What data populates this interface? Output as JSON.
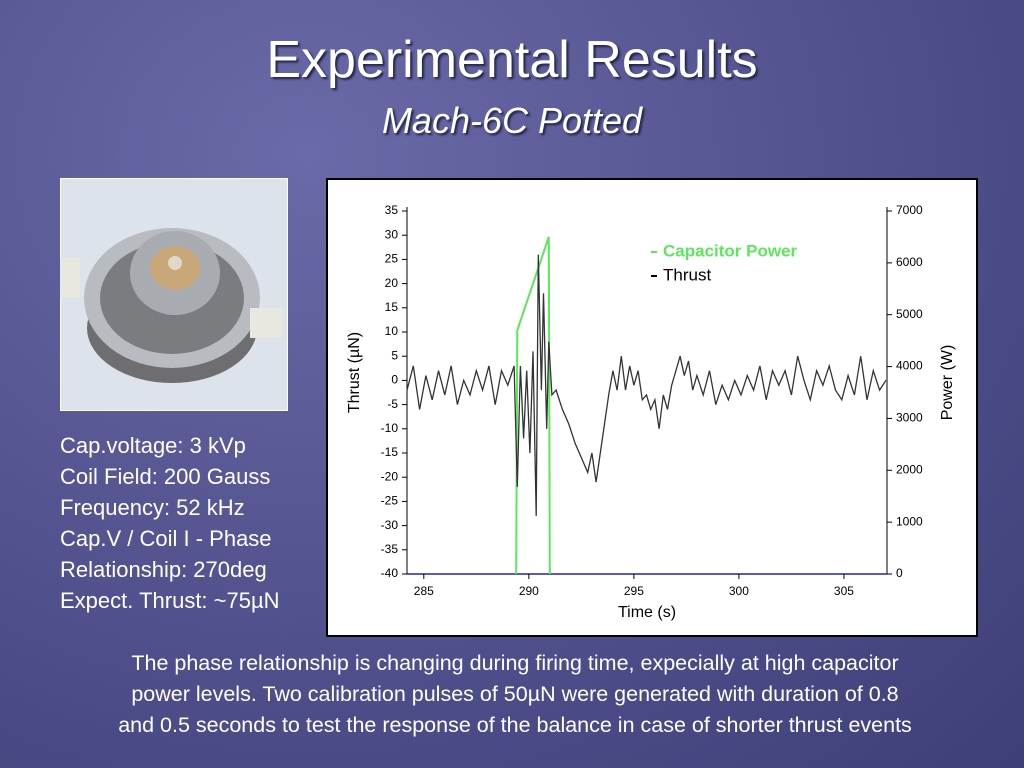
{
  "slide": {
    "title": "Experimental Results",
    "subtitle": "Mach-6C Potted",
    "specs": [
      "Cap.voltage: 3 kVp",
      "Coil Field: 200 Gauss",
      "Frequency: 52 kHz",
      "Cap.V / Coil I - Phase",
      "Relationship: 270deg",
      "Expect. Thrust: ~75µN"
    ],
    "caption": [
      "The phase relationship is changing during firing time, expecially at high capacitor",
      "power levels. Two calibration pulses of 50µN were generated with duration of 0.8",
      "and 0.5 seconds to test the response of the balance in case of shorter thrust events"
    ]
  },
  "chart_data": {
    "type": "line",
    "x_label": "Time (s)",
    "y_label": "Thrust (µN)",
    "y2_label": "Power (W)",
    "xlim": [
      284.2,
      307.05
    ],
    "xticks": [
      285,
      290,
      295,
      300,
      305
    ],
    "ylim": [
      -40,
      35
    ],
    "yticks": [
      -40,
      -35,
      -30,
      -25,
      -20,
      -15,
      -10,
      -5,
      0,
      5,
      10,
      15,
      20,
      25,
      30,
      35
    ],
    "y2lim": [
      0,
      7000
    ],
    "y2ticks": [
      0,
      1000,
      2000,
      3000,
      4000,
      5000,
      6000,
      7000
    ],
    "series": [
      {
        "name": "Capacitor Power",
        "color": "#5de65d",
        "axis": "y2",
        "x": [
          289.4,
          289.45,
          290.95,
          291.0
        ],
        "values": [
          0,
          4700,
          6500,
          0
        ]
      },
      {
        "name": "Thrust",
        "color": "#333333",
        "x": [
          284.2,
          284.5,
          284.8,
          285.1,
          285.4,
          285.7,
          286.0,
          286.3,
          286.6,
          286.9,
          287.2,
          287.5,
          287.8,
          288.1,
          288.4,
          288.7,
          289.0,
          289.3,
          289.45,
          289.6,
          289.75,
          289.9,
          290.05,
          290.2,
          290.35,
          290.45,
          290.6,
          290.7,
          290.85,
          290.95,
          291.1,
          291.3,
          291.6,
          291.9,
          292.2,
          292.5,
          292.8,
          293.0,
          293.2,
          293.4,
          293.6,
          293.8,
          294.0,
          294.2,
          294.4,
          294.6,
          294.8,
          295.0,
          295.2,
          295.4,
          295.6,
          295.8,
          296.0,
          296.2,
          296.4,
          296.6,
          296.8,
          297.0,
          297.2,
          297.4,
          297.6,
          297.8,
          298.0,
          298.3,
          298.6,
          298.9,
          299.2,
          299.5,
          299.8,
          300.1,
          300.4,
          300.7,
          301.0,
          301.3,
          301.6,
          301.9,
          302.2,
          302.5,
          302.8,
          303.1,
          303.4,
          303.7,
          304.0,
          304.3,
          304.6,
          304.9,
          305.2,
          305.5,
          305.8,
          306.1,
          306.4,
          306.7,
          307.0
        ],
        "values": [
          -2,
          3,
          -6,
          1,
          -4,
          2,
          -3,
          3,
          -5,
          0,
          -3,
          2,
          -2,
          3,
          -5,
          2,
          -1,
          3,
          -22,
          3,
          -12,
          2,
          -15,
          6,
          -28,
          26,
          -2,
          18,
          -10,
          8,
          -3,
          -2,
          -6,
          -9,
          -13,
          -16,
          -19,
          -15,
          -21,
          -15,
          -9,
          -3,
          2,
          -2,
          5,
          -2,
          3,
          -1,
          2,
          -4,
          -3,
          -6,
          -4,
          -10,
          -3,
          -6,
          -1,
          2,
          5,
          1,
          4,
          -2,
          1,
          -3,
          2,
          -5,
          -1,
          -4,
          0,
          -3,
          1,
          -2,
          3,
          -4,
          2,
          -1,
          2,
          -3,
          5,
          0,
          -4,
          2,
          -1,
          3,
          -2,
          -4,
          1,
          -3,
          5,
          -4,
          2,
          -2,
          0
        ]
      }
    ]
  }
}
